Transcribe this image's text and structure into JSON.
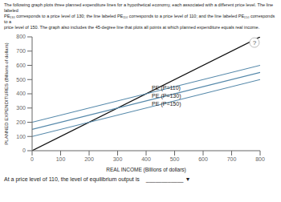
{
  "chart_data": {
    "type": "line",
    "title": "The following graph plots three planned expenditure lines for a hypothetical economy, each associated with a different price level. The line labeled\nPE₁₃₀ corresponds to a price level of 130; the line labeled PE₁₁₀ corresponds to a price level of 110; and the line labeled PE₁₅₀ corresponds to a\nprice level of 150. The graph also includes the 45-degree line that plots all points at which planned expenditure equals real income.",
    "xlabel": "REAL INCOME (Billions of dollars)",
    "ylabel": "PLANNED EXPENDITURES (Billions of dollars)",
    "x": [
      0,
      800
    ],
    "series": [
      {
        "color": "#111111",
        "values": [
          0,
          800
        ]
      },
      {
        "color": "#5588aa",
        "values": [
          200,
          600
        ]
      },
      {
        "color": "#5588aa",
        "values": [
          150,
          550
        ]
      },
      {
        "color": "#5588aa",
        "values": [
          100,
          500
        ]
      }
    ],
    "xlim": [
      0,
      800
    ],
    "ylim": [
      0,
      800
    ],
    "xticks": [
      0,
      100,
      200,
      300,
      400,
      500,
      600,
      700,
      800
    ],
    "yticks": [
      0,
      100,
      200,
      300,
      400,
      500,
      600,
      700,
      800
    ],
    "grid": false,
    "annotations": [
      {
        "text": "PE (P=110)",
        "x": 420,
        "y": 410
      },
      {
        "text": "PE (P=130)",
        "x": 420,
        "y": 355
      },
      {
        "text": "PE (P=150)",
        "x": 420,
        "y": 300
      },
      {
        "text": "?",
        "x": 780,
        "y": 760,
        "marker": "circle"
      }
    ],
    "footer": "At a price level of 110, the level of equilibrium output is",
    "dropdown": "____________  ▼"
  }
}
